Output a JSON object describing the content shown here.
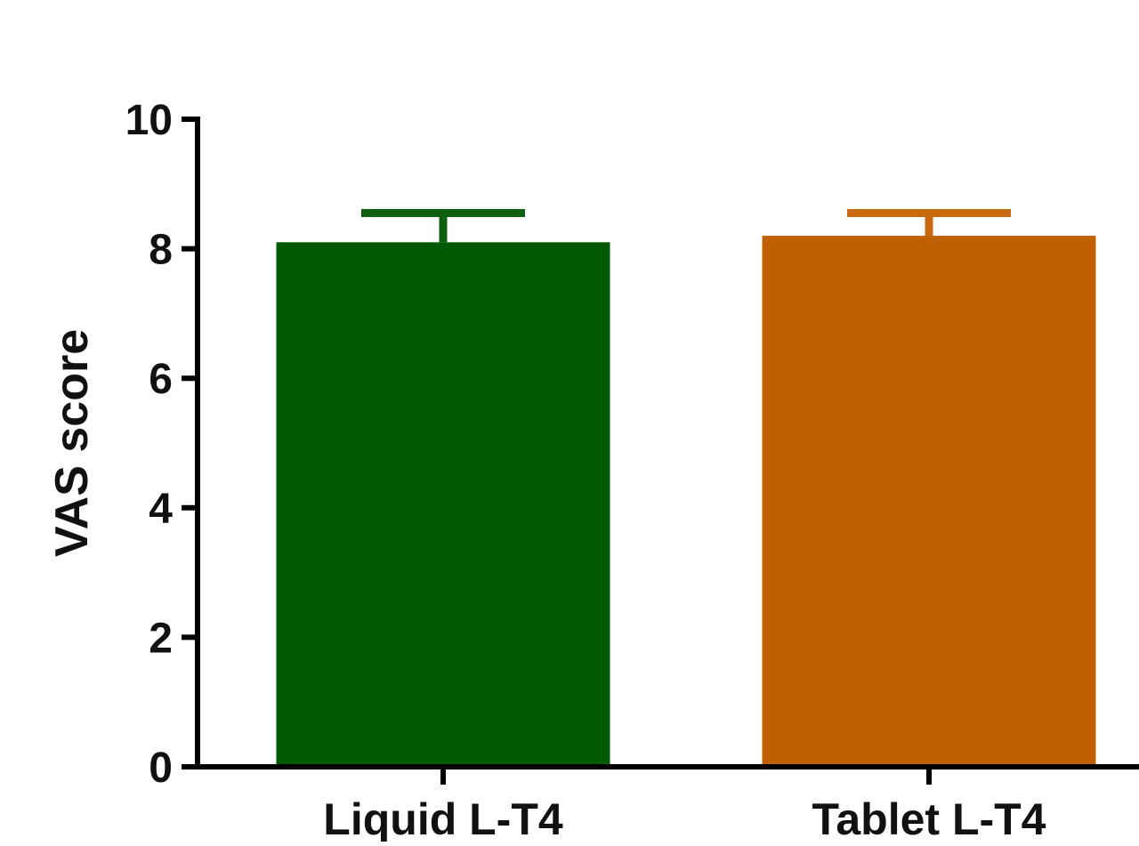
{
  "chart_data": {
    "type": "bar",
    "title": "",
    "xlabel": "",
    "ylabel": "VAS score",
    "ylim": [
      0,
      10
    ],
    "yticks": [
      0,
      2,
      4,
      6,
      8,
      10
    ],
    "grid": false,
    "categories": [
      "Liquid L-T4",
      "Tablet L-T4"
    ],
    "values": [
      8.1,
      8.2
    ],
    "error_upper": [
      0.45,
      0.35
    ],
    "colors": [
      "#005a04",
      "#c06000"
    ],
    "error_bar_colors": [
      "#0e6010",
      "#c86a10"
    ]
  }
}
